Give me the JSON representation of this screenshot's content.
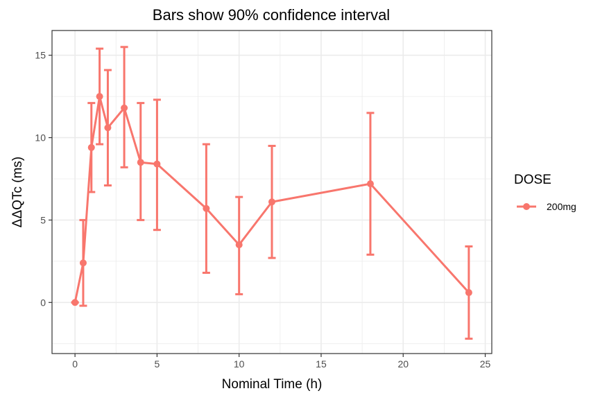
{
  "chart_data": {
    "type": "line",
    "title": "Bars show 90% confidence interval",
    "xlabel": "Nominal Time (h)",
    "ylabel": "ΔΔQTc (ms)",
    "xlim": [
      -1.4,
      25.4
    ],
    "ylim": [
      -3.1,
      16.5
    ],
    "xticks": [
      0,
      5,
      10,
      15,
      20,
      25
    ],
    "yticks": [
      0,
      5,
      10,
      15
    ],
    "xticks_minor": [
      2.5,
      7.5,
      12.5,
      17.5,
      22.5
    ],
    "yticks_minor": [
      -2.5,
      2.5,
      7.5,
      12.5
    ],
    "grid": true,
    "legend": {
      "title": "DOSE",
      "position": "right"
    },
    "series": [
      {
        "name": "200mg",
        "color": "#F8766D",
        "points": [
          {
            "x": 0,
            "y": 0.0,
            "lower": 0.0,
            "upper": 0.0
          },
          {
            "x": 0.5,
            "y": 2.4,
            "lower": -0.2,
            "upper": 5.0
          },
          {
            "x": 1,
            "y": 9.4,
            "lower": 6.7,
            "upper": 12.1
          },
          {
            "x": 1.5,
            "y": 12.5,
            "lower": 9.6,
            "upper": 15.4
          },
          {
            "x": 2,
            "y": 10.6,
            "lower": 7.1,
            "upper": 14.1
          },
          {
            "x": 3,
            "y": 11.8,
            "lower": 8.2,
            "upper": 15.5
          },
          {
            "x": 4,
            "y": 8.5,
            "lower": 5.0,
            "upper": 12.1
          },
          {
            "x": 5,
            "y": 8.4,
            "lower": 4.4,
            "upper": 12.3
          },
          {
            "x": 8,
            "y": 5.7,
            "lower": 1.8,
            "upper": 9.6
          },
          {
            "x": 10,
            "y": 3.5,
            "lower": 0.5,
            "upper": 6.4
          },
          {
            "x": 12,
            "y": 6.1,
            "lower": 2.7,
            "upper": 9.5
          },
          {
            "x": 18,
            "y": 7.2,
            "lower": 2.9,
            "upper": 11.5
          },
          {
            "x": 24,
            "y": 0.6,
            "lower": -2.2,
            "upper": 3.4
          }
        ]
      }
    ]
  }
}
